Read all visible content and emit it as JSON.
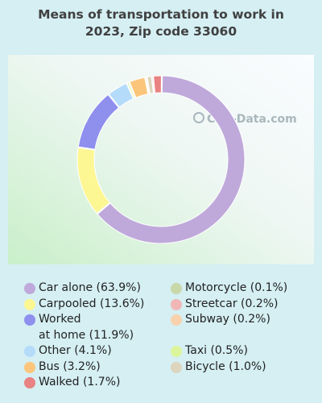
{
  "chart_data": {
    "type": "donut",
    "title_lines": [
      "Means of transportation to work in",
      "2023, Zip code 33060"
    ],
    "series": [
      {
        "name": "Car alone",
        "label": "Car alone (63.9%)",
        "value": 63.9,
        "color": "#bfa9da"
      },
      {
        "name": "Carpooled",
        "label": "Carpooled (13.6%)",
        "value": 13.6,
        "color": "#fcf793"
      },
      {
        "name": "Worked at home",
        "label_line1": "Worked",
        "label_line2": "at home (11.9%)",
        "value": 11.9,
        "color": "#8f8fee"
      },
      {
        "name": "Other",
        "label": "Other (4.1%)",
        "value": 4.1,
        "color": "#b5dbfb"
      },
      {
        "name": "Taxi",
        "label": "Taxi (0.5%)",
        "value": 0.5,
        "color": "#dcf59a"
      },
      {
        "name": "Bus",
        "label": "Bus (3.2%)",
        "value": 3.2,
        "color": "#fbc67c"
      },
      {
        "name": "Motorcycle",
        "label": "Motorcycle (0.1%)",
        "value": 0.1,
        "color": "#c9d8a9"
      },
      {
        "name": "Subway",
        "label": "Subway (0.2%)",
        "value": 0.2,
        "color": "#f7d2ac"
      },
      {
        "name": "Bicycle",
        "label": "Bicycle (1.0%)",
        "value": 1.0,
        "color": "#ddd5bd"
      },
      {
        "name": "Streetcar",
        "label": "Streetcar (0.2%)",
        "value": 0.2,
        "color": "#f1b7b7"
      },
      {
        "name": "Walked",
        "label": "Walked (1.7%)",
        "value": 1.7,
        "color": "#e98282"
      }
    ],
    "legend_placement": "bottom"
  },
  "watermark": "City-Data.com"
}
